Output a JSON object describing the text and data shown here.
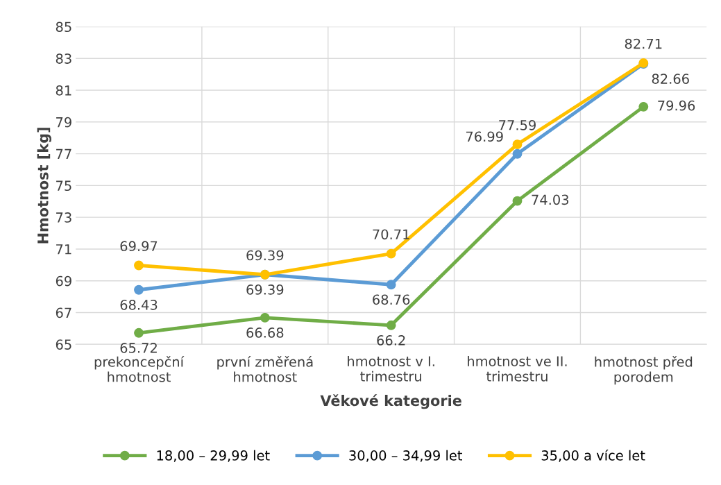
{
  "chart_data": {
    "type": "line",
    "xlabel": "Věkové kategorie",
    "ylabel": "Hmotnost [kg]",
    "categories": [
      "prekoncepční\nhmotnost",
      "první změřená\nhmotnost",
      "hmotnost v I.\ntrimestru",
      "hmotnost ve II.\ntrimestru",
      "hmotnost před\nporodem"
    ],
    "series": [
      {
        "name": "18,00 – 29,99 let",
        "color": "#70ad47",
        "values": [
          65.72,
          66.68,
          66.2,
          74.03,
          79.96
        ]
      },
      {
        "name": "30,00 – 34,99 let",
        "color": "#5b9bd5",
        "values": [
          68.43,
          69.39,
          68.76,
          76.99,
          82.66
        ]
      },
      {
        "name": "35,00 a více let",
        "color": "#ffc000",
        "values": [
          69.97,
          69.39,
          70.71,
          77.59,
          82.71
        ]
      }
    ],
    "ylim": [
      65,
      85
    ],
    "yticks": [
      65,
      67,
      69,
      71,
      73,
      75,
      77,
      79,
      81,
      83,
      85
    ],
    "grid": true,
    "legend": "bottom",
    "marker": "circle",
    "line_style": "solid",
    "data_labels": true
  }
}
